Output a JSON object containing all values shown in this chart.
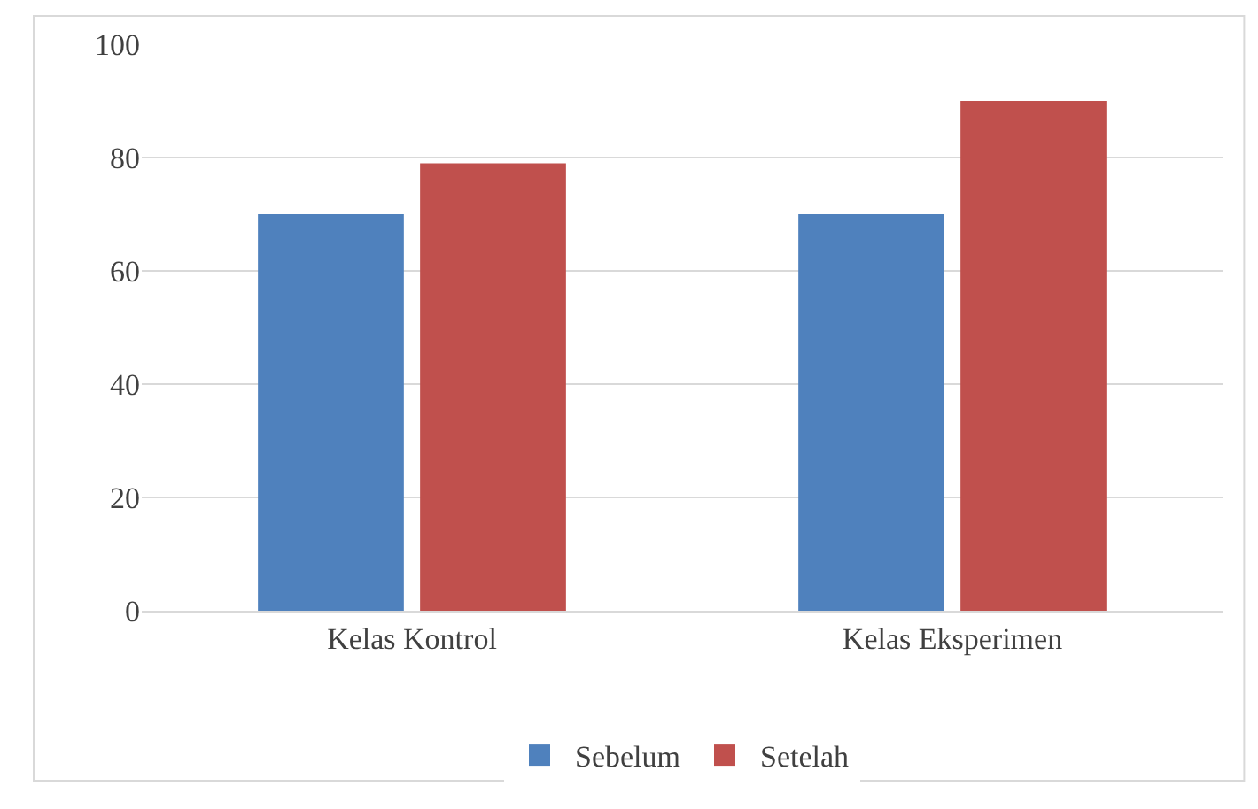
{
  "chart_data": {
    "type": "bar",
    "categories": [
      "Kelas Kontrol",
      "Kelas Eksperimen"
    ],
    "series": [
      {
        "name": "Sebelum",
        "color": "#4f81bd",
        "values": [
          70,
          70
        ]
      },
      {
        "name": "Setelah",
        "color": "#c0504d",
        "values": [
          79,
          90
        ]
      }
    ],
    "ylim": [
      0,
      100
    ],
    "yticks": [
      0,
      20,
      40,
      60,
      80,
      100
    ],
    "grid": "y",
    "legend": "bottom"
  }
}
